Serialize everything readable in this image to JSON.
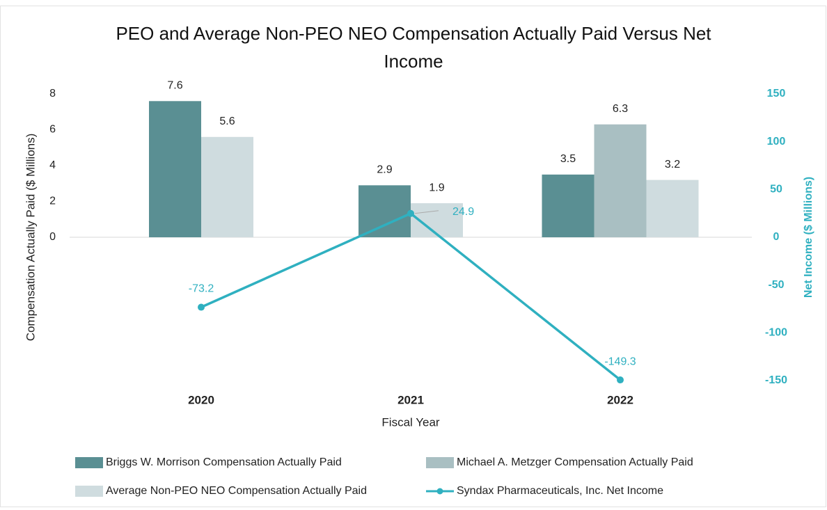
{
  "chart_data": {
    "type": "bar",
    "title": "PEO and Average Non-PEO NEO Compensation Actually Paid Versus Net Income",
    "categories": [
      "2020",
      "2021",
      "2022"
    ],
    "x_label": "Fiscal Year",
    "y_label": "Compensation Actually Paid ($ Millions)",
    "y2_label": "Net Income ($ Millions)",
    "ylim": [
      -8,
      8
    ],
    "yticks": [
      0,
      2,
      4,
      6,
      8
    ],
    "y2lim": [
      -150,
      150
    ],
    "y2ticks": [
      -150,
      -100,
      -50,
      0,
      50,
      100,
      150
    ],
    "series": [
      {
        "name": "Briggs W. Morrison Compensation Actually Paid",
        "color": "#5a8f93",
        "type": "bar",
        "values": [
          7.6,
          2.9,
          3.5
        ]
      },
      {
        "name": "Michael A. Metzger Compensation Actually Paid",
        "color": "#a9bfc2",
        "type": "bar",
        "values": [
          null,
          null,
          6.3
        ]
      },
      {
        "name": "Average Non-PEO NEO Compensation Actually Paid",
        "color": "#cfdcdf",
        "type": "bar",
        "values": [
          5.6,
          1.9,
          3.2
        ]
      },
      {
        "name": "Syndax Pharmaceuticals, Inc. Net Income",
        "color": "#2fb0c0",
        "type": "line",
        "axis": "y2",
        "values": [
          -73.2,
          24.9,
          -149.3
        ]
      }
    ]
  }
}
